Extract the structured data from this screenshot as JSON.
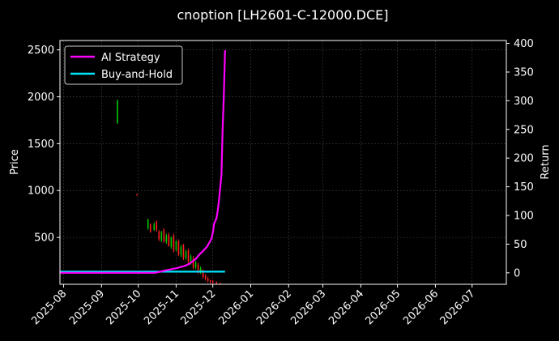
{
  "chart_data": {
    "type": "line",
    "title": "cnoption [LH2601-C-12000.DCE]",
    "ylabel": "Price",
    "y2label": "Return",
    "xlim": [
      "2025-07-29",
      "2026-07-29"
    ],
    "ylim": [
      0,
      2600
    ],
    "y2lim": [
      -20,
      405
    ],
    "x_ticks": [
      "2025-08",
      "2025-09",
      "2025-10",
      "2025-11",
      "2025-12",
      "2026-01",
      "2026-02",
      "2026-03",
      "2026-04",
      "2026-05",
      "2026-06",
      "2026-07"
    ],
    "y_ticks": [
      500,
      1000,
      1500,
      2000,
      2500
    ],
    "y2_ticks": [
      0,
      50,
      100,
      150,
      200,
      250,
      300,
      350,
      400
    ],
    "grid": true,
    "legend_position": "top-left",
    "colors": {
      "up": "#00c800",
      "down": "#ff2020",
      "ai_strategy": "#ff00ff",
      "buy_and_hold": "#00e5ff",
      "background": "#000000",
      "grid": "#444444",
      "text": "#ffffff"
    },
    "candles": [
      {
        "date": "2025-09-14",
        "open": 1720,
        "close": 1960,
        "high": 1970,
        "low": 1710
      },
      {
        "date": "2025-09-30",
        "open": 960,
        "close": 950,
        "high": 965,
        "low": 945
      },
      {
        "date": "2025-10-09",
        "open": 600,
        "close": 690,
        "high": 700,
        "low": 580
      },
      {
        "date": "2025-10-11",
        "open": 640,
        "close": 560,
        "high": 650,
        "low": 550
      },
      {
        "date": "2025-10-14",
        "open": 580,
        "close": 640,
        "high": 660,
        "low": 570
      },
      {
        "date": "2025-10-16",
        "open": 670,
        "close": 580,
        "high": 680,
        "low": 560
      },
      {
        "date": "2025-10-18",
        "open": 560,
        "close": 480,
        "high": 580,
        "low": 460
      },
      {
        "date": "2025-10-20",
        "open": 470,
        "close": 560,
        "high": 570,
        "low": 450
      },
      {
        "date": "2025-10-22",
        "open": 580,
        "close": 460,
        "high": 600,
        "low": 440
      },
      {
        "date": "2025-10-24",
        "open": 450,
        "close": 520,
        "high": 540,
        "low": 430
      },
      {
        "date": "2025-10-26",
        "open": 530,
        "close": 410,
        "high": 550,
        "low": 400
      },
      {
        "date": "2025-10-28",
        "open": 400,
        "close": 500,
        "high": 510,
        "low": 380
      },
      {
        "date": "2025-10-30",
        "open": 520,
        "close": 360,
        "high": 540,
        "low": 340
      },
      {
        "date": "2025-11-01",
        "open": 370,
        "close": 460,
        "high": 470,
        "low": 350
      },
      {
        "date": "2025-11-03",
        "open": 460,
        "close": 320,
        "high": 480,
        "low": 300
      },
      {
        "date": "2025-11-05",
        "open": 310,
        "close": 400,
        "high": 420,
        "low": 290
      },
      {
        "date": "2025-11-07",
        "open": 420,
        "close": 280,
        "high": 430,
        "low": 260
      },
      {
        "date": "2025-11-09",
        "open": 280,
        "close": 350,
        "high": 370,
        "low": 260
      },
      {
        "date": "2025-11-11",
        "open": 360,
        "close": 240,
        "high": 380,
        "low": 220
      },
      {
        "date": "2025-11-13",
        "open": 230,
        "close": 300,
        "high": 320,
        "low": 210
      },
      {
        "date": "2025-11-15",
        "open": 280,
        "close": 180,
        "high": 300,
        "low": 160
      },
      {
        "date": "2025-11-17",
        "open": 180,
        "close": 230,
        "high": 250,
        "low": 160
      },
      {
        "date": "2025-11-19",
        "open": 210,
        "close": 130,
        "high": 230,
        "low": 110
      },
      {
        "date": "2025-11-21",
        "open": 130,
        "close": 170,
        "high": 190,
        "low": 110
      },
      {
        "date": "2025-11-23",
        "open": 150,
        "close": 80,
        "high": 160,
        "low": 60
      },
      {
        "date": "2025-11-25",
        "open": 90,
        "close": 60,
        "high": 110,
        "low": 40
      },
      {
        "date": "2025-11-27",
        "open": 60,
        "close": 40,
        "high": 80,
        "low": 20
      },
      {
        "date": "2025-11-29",
        "open": 40,
        "close": 30,
        "high": 50,
        "low": 10
      },
      {
        "date": "2025-12-01",
        "open": 35,
        "close": 20,
        "high": 45,
        "low": 5
      },
      {
        "date": "2025-12-04",
        "open": 25,
        "close": 10,
        "high": 30,
        "low": 2
      },
      {
        "date": "2025-12-07",
        "open": 12,
        "close": 5,
        "high": 15,
        "low": 0
      }
    ],
    "series": [
      {
        "name": "AI Strategy",
        "axis": "right",
        "x": [
          "2025-07-29",
          "2025-10-15",
          "2025-10-25",
          "2025-11-01",
          "2025-11-08",
          "2025-11-12",
          "2025-11-17",
          "2025-11-20",
          "2025-11-23",
          "2025-11-26",
          "2025-11-28",
          "2025-11-30",
          "2025-12-01",
          "2025-12-02",
          "2025-12-04",
          "2025-12-05",
          "2025-12-06",
          "2025-12-08",
          "2025-12-09",
          "2025-12-10",
          "2025-12-11"
        ],
        "values": [
          0,
          0,
          5,
          8,
          12,
          16,
          24,
          32,
          38,
          45,
          52,
          60,
          70,
          85,
          95,
          108,
          125,
          170,
          250,
          310,
          388
        ]
      },
      {
        "name": "Buy-and-Hold",
        "axis": "right",
        "x": [
          "2025-07-29",
          "2025-12-11"
        ],
        "values": [
          2,
          2
        ]
      }
    ]
  }
}
